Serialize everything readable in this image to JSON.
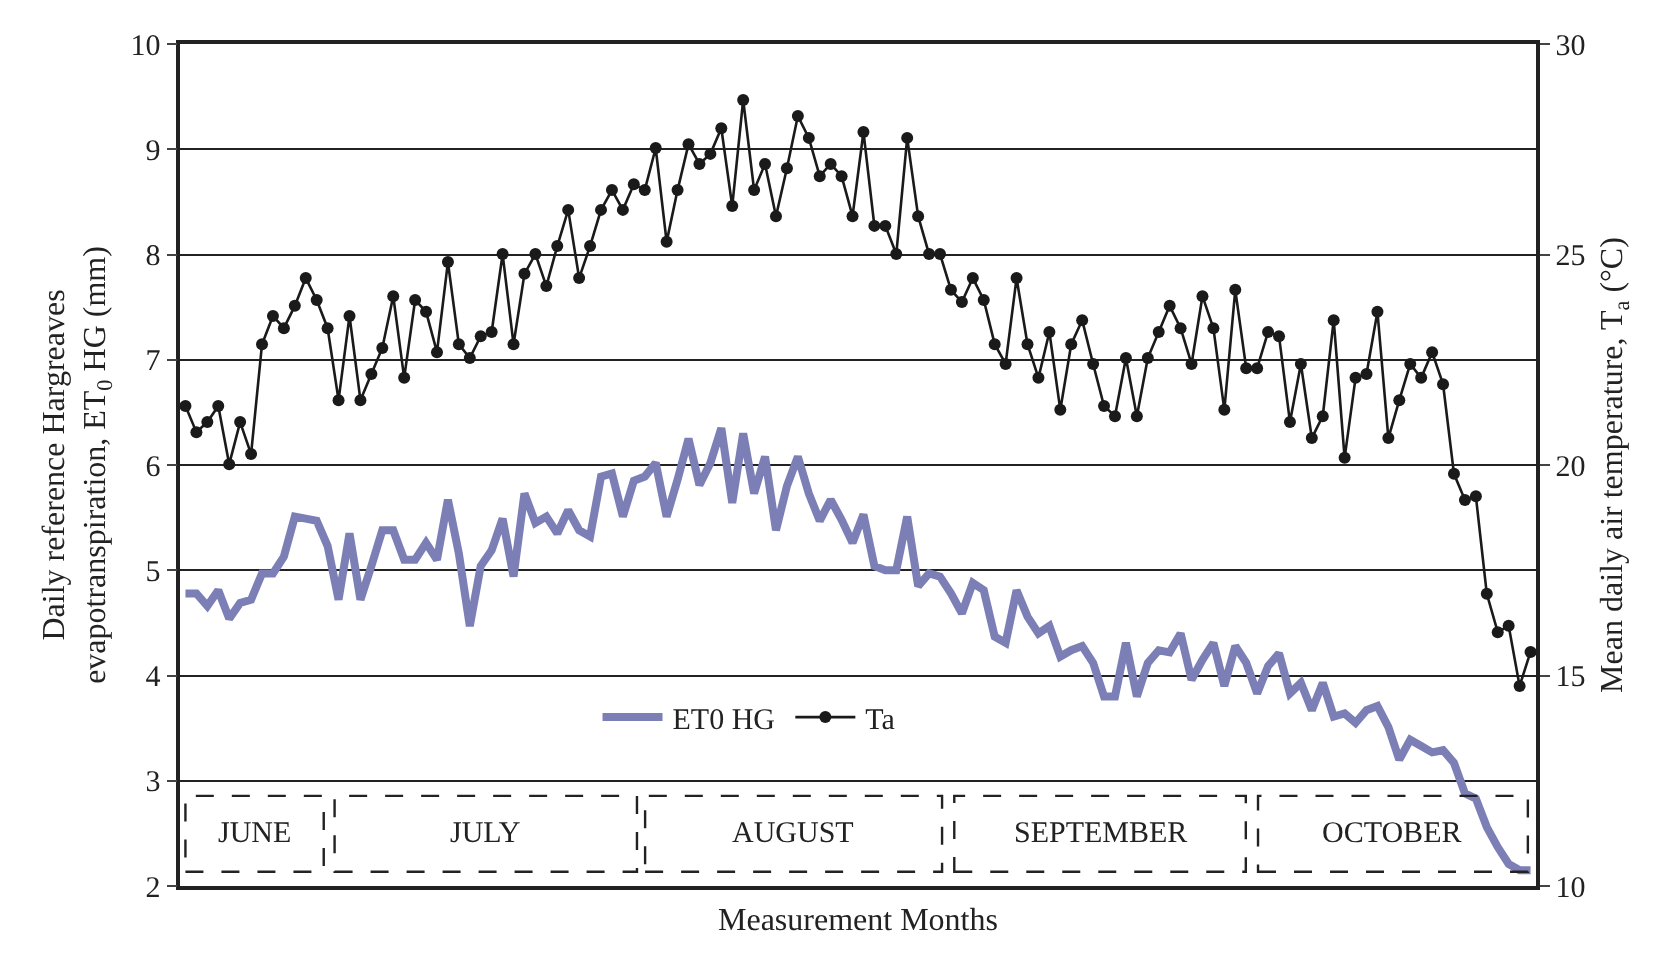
{
  "chart_data": {
    "type": "line",
    "xlabel": "Measurement Months",
    "ylabel": "Daily reference Hargreaves\nevapotranspiration, ET$_{0}$ HG (mm)",
    "y2label": "Mean daily air temperature, T$_{a}$ (°C)",
    "categories": [
      null,
      null,
      null,
      null,
      null,
      null,
      null,
      null,
      null,
      null,
      null,
      null,
      null,
      null,
      null,
      null,
      null,
      null,
      null,
      null,
      null,
      null,
      null,
      null,
      null,
      null,
      null,
      null,
      null,
      null,
      null,
      null,
      null,
      null,
      null,
      null,
      null,
      null,
      null,
      null,
      null,
      null,
      null,
      null,
      null,
      null,
      null,
      null,
      null,
      null,
      null,
      null,
      null,
      null,
      null,
      null,
      null,
      null,
      null,
      null,
      null,
      null,
      null,
      null,
      null,
      null,
      null,
      null,
      null,
      null,
      null,
      null,
      null,
      null,
      null,
      null,
      null,
      null,
      null,
      null,
      null,
      null,
      null,
      null,
      null,
      null,
      null,
      null,
      null,
      null,
      null,
      null,
      null,
      null,
      null,
      null,
      null,
      null,
      null,
      null,
      null,
      null,
      null,
      null,
      null,
      null,
      null,
      null,
      null,
      null,
      null,
      null,
      null,
      null,
      null,
      null,
      null,
      null,
      null,
      null,
      null,
      null,
      null,
      null
    ],
    "series": [
      {
        "name": "ET0 HG",
        "color": "#7b7fb5",
        "marker": "none",
        "values": [
          4.78,
          4.78,
          4.66,
          4.81,
          4.54,
          4.69,
          4.72,
          4.97,
          4.97,
          5.13,
          5.51,
          5.49,
          5.47,
          5.23,
          4.72,
          5.35,
          4.72,
          5.04,
          5.38,
          5.38,
          5.1,
          5.1,
          5.26,
          5.1,
          5.67,
          5.16,
          4.47,
          5.04,
          5.19,
          5.49,
          4.94,
          5.73,
          5.45,
          5.51,
          5.35,
          5.57,
          5.38,
          5.32,
          5.89,
          5.92,
          5.51,
          5.85,
          5.89,
          6.02,
          5.51,
          5.86,
          6.25,
          5.81,
          6.02,
          6.35,
          5.64,
          6.3,
          5.73,
          6.08,
          5.38,
          5.8,
          6.08,
          5.73,
          5.47,
          5.67,
          5.48,
          5.26,
          5.53,
          5.04,
          5.0,
          5.0,
          5.51,
          4.85,
          4.97,
          4.94,
          4.78,
          4.59,
          4.88,
          4.81,
          4.37,
          4.31,
          4.81,
          4.56,
          4.4,
          4.47,
          4.18,
          4.24,
          4.28,
          4.12,
          3.8,
          3.8,
          4.31,
          3.8,
          4.12,
          4.24,
          4.22,
          4.4,
          3.96,
          4.15,
          4.31,
          3.9,
          4.28,
          4.12,
          3.83,
          4.09,
          4.21,
          3.83,
          3.93,
          3.67,
          3.93,
          3.61,
          3.64,
          3.55,
          3.67,
          3.71,
          3.51,
          3.2,
          3.39,
          3.33,
          3.27,
          3.29,
          3.17,
          2.88,
          2.83,
          2.56,
          2.37,
          2.21,
          2.15,
          2.15
        ]
      },
      {
        "name": "Ta",
        "color": "#1a1a1a",
        "marker": "circle",
        "axis": "y2",
        "values": [
          21.4,
          20.78,
          21.02,
          21.4,
          20.02,
          21.02,
          20.26,
          22.87,
          23.54,
          23.25,
          23.78,
          24.44,
          23.92,
          23.25,
          21.54,
          23.54,
          21.54,
          22.16,
          22.78,
          24.01,
          22.07,
          23.92,
          23.64,
          22.68,
          24.82,
          22.87,
          22.54,
          23.06,
          23.16,
          25.01,
          22.87,
          24.54,
          25.01,
          24.25,
          25.2,
          26.06,
          24.44,
          25.2,
          26.06,
          26.53,
          26.06,
          26.67,
          26.53,
          27.53,
          25.3,
          26.53,
          27.62,
          27.15,
          27.39,
          28.0,
          26.15,
          28.67,
          26.53,
          27.15,
          25.91,
          27.05,
          28.29,
          27.77,
          26.86,
          27.15,
          26.86,
          25.91,
          27.91,
          25.68,
          25.68,
          25.01,
          27.77,
          25.91,
          25.01,
          25.01,
          24.16,
          23.87,
          24.44,
          23.92,
          22.87,
          22.4,
          24.44,
          22.87,
          22.07,
          23.16,
          21.31,
          22.87,
          23.44,
          22.4,
          21.4,
          21.16,
          22.54,
          21.16,
          22.54,
          23.16,
          23.78,
          23.25,
          22.4,
          24.01,
          23.25,
          21.31,
          24.16,
          22.3,
          22.3,
          23.16,
          23.06,
          21.02,
          22.4,
          20.64,
          21.16,
          23.44,
          20.17,
          22.07,
          22.16,
          23.64,
          20.64,
          21.54,
          22.4,
          22.07,
          22.68,
          21.92,
          19.79,
          19.17,
          19.26,
          16.94,
          16.03,
          16.18,
          14.75,
          15.56
        ]
      }
    ],
    "ylim": [
      2,
      10
    ],
    "yticks": [
      2,
      3,
      4,
      5,
      6,
      7,
      8,
      9,
      10
    ],
    "y2lim": [
      10,
      30
    ],
    "y2ticks": [
      10,
      15,
      20,
      25,
      30
    ],
    "grid": "y",
    "legend": "bottom",
    "tick_labels": "y",
    "annotations": [
      "JUNE",
      "JULY",
      "AUGUST",
      "SEPTEMBER",
      "OCTOBER"
    ]
  }
}
